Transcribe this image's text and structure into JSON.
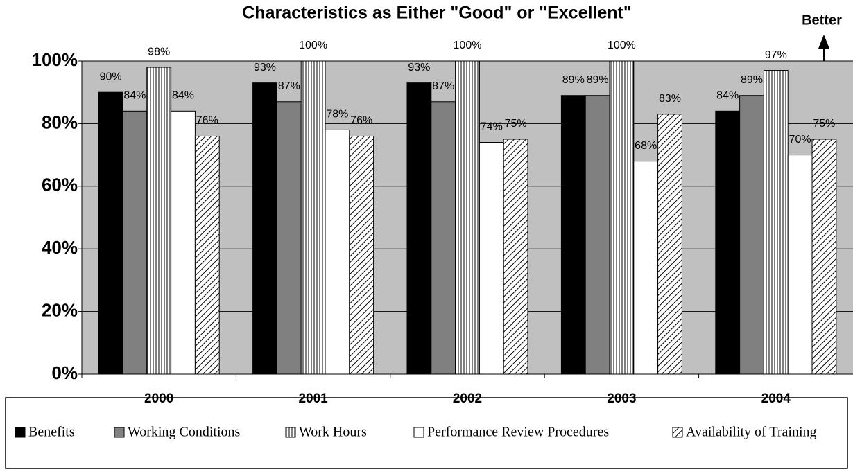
{
  "chart_data": {
    "type": "bar",
    "title": "Characteristics as Either \"Good\" or \"Excellent\"",
    "annotation": "Better",
    "categories": [
      "2000",
      "2001",
      "2002",
      "2003",
      "2004"
    ],
    "series": [
      {
        "name": "Benefits",
        "color": "#000000",
        "pattern": "solid",
        "values": [
          90,
          93,
          93,
          89,
          84
        ],
        "value_labels": [
          "90%",
          "93%",
          "93%",
          "89%",
          "84%"
        ]
      },
      {
        "name": "Working Conditions",
        "color": "#808080",
        "pattern": "solid",
        "values": [
          84,
          87,
          87,
          89,
          89
        ],
        "value_labels": [
          "84%",
          "87%",
          "87%",
          "89%",
          "89%"
        ]
      },
      {
        "name": "Work Hours",
        "color": "#ffffff",
        "pattern": "vertical",
        "values": [
          98,
          100,
          100,
          100,
          97
        ],
        "value_labels": [
          "98%",
          "100%",
          "100%",
          "100%",
          "97%"
        ]
      },
      {
        "name": "Performance Review Procedures",
        "color": "#ffffff",
        "pattern": "solid",
        "values": [
          84,
          78,
          74,
          68,
          70
        ],
        "value_labels": [
          "84%",
          "78%",
          "74%",
          "68%",
          "70%"
        ]
      },
      {
        "name": "Availability of Training",
        "color": "#ffffff",
        "pattern": "diagonal",
        "values": [
          76,
          76,
          75,
          83,
          75
        ],
        "value_labels": [
          "76%",
          "76%",
          "75%",
          "83%",
          "75%"
        ]
      }
    ],
    "ylim": [
      0,
      100
    ],
    "yticks": [
      {
        "value": 0,
        "label": "0%"
      },
      {
        "value": 20,
        "label": "20%"
      },
      {
        "value": 40,
        "label": "40%"
      },
      {
        "value": 60,
        "label": "60%"
      },
      {
        "value": 80,
        "label": "80%"
      },
      {
        "value": 100,
        "label": "100%"
      }
    ],
    "grid": true,
    "plot_background": "#c0c0c0",
    "legend": "bottom"
  }
}
